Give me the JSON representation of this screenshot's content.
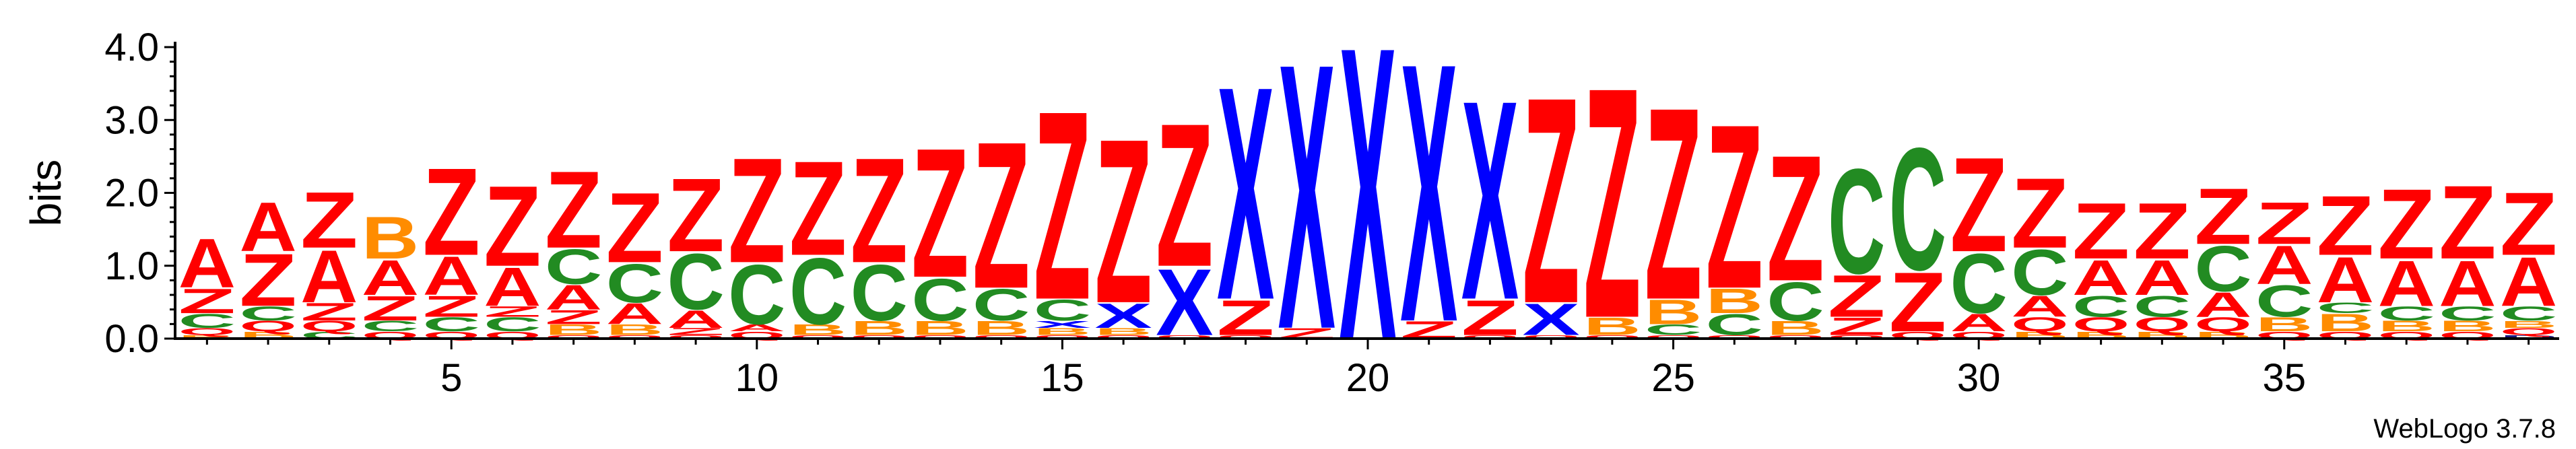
{
  "chart_data": {
    "type": "sequence-logo",
    "ylabel": "bits",
    "ylim": [
      0,
      4.0
    ],
    "yticks": [
      "0.0",
      "1.0",
      "2.0",
      "3.0",
      "4.0"
    ],
    "xlim": [
      1,
      39
    ],
    "xticks": [
      5,
      10,
      15,
      20,
      25,
      30,
      35
    ],
    "credit": "WebLogo 3.7.8",
    "colors": {
      "Z": "#ff0000",
      "A": "#ff0000",
      "Q": "#ff0000",
      "X": "#0000ff",
      "C": "#228b22",
      "B": "#ff8c00",
      "D": "#1a1a80"
    },
    "positions": [
      {
        "pos": 1,
        "stack": [
          [
            "B",
            0.05
          ],
          [
            "Q",
            0.1
          ],
          [
            "C",
            0.2
          ],
          [
            "Z",
            0.35
          ],
          [
            "A",
            0.7
          ]
        ]
      },
      {
        "pos": 2,
        "stack": [
          [
            "B",
            0.1
          ],
          [
            "Q",
            0.15
          ],
          [
            "C",
            0.2
          ],
          [
            "Z",
            0.75
          ],
          [
            "A",
            0.7
          ]
        ]
      },
      {
        "pos": 3,
        "stack": [
          [
            "C",
            0.1
          ],
          [
            "Q",
            0.15
          ],
          [
            "Z",
            0.25
          ],
          [
            "A",
            0.75
          ],
          [
            "Z",
            0.8
          ]
        ]
      },
      {
        "pos": 4,
        "stack": [
          [
            "Q",
            0.1
          ],
          [
            "C",
            0.15
          ],
          [
            "Z",
            0.35
          ],
          [
            "A",
            0.5
          ],
          [
            "B",
            0.6
          ]
        ]
      },
      {
        "pos": 5,
        "stack": [
          [
            "Q",
            0.1
          ],
          [
            "C",
            0.2
          ],
          [
            "Z",
            0.3
          ],
          [
            "A",
            0.55
          ],
          [
            "Z",
            1.25
          ]
        ]
      },
      {
        "pos": 6,
        "stack": [
          [
            "Q",
            0.1
          ],
          [
            "C",
            0.2
          ],
          [
            "Z",
            0.15
          ],
          [
            "A",
            0.55
          ],
          [
            "Z",
            1.15
          ]
        ]
      },
      {
        "pos": 7,
        "stack": [
          [
            "Q",
            0.05
          ],
          [
            "B",
            0.15
          ],
          [
            "Z",
            0.2
          ],
          [
            "A",
            0.35
          ],
          [
            "C",
            0.5
          ],
          [
            "Z",
            1.1
          ]
        ]
      },
      {
        "pos": 8,
        "stack": [
          [
            "Q",
            0.05
          ],
          [
            "B",
            0.15
          ],
          [
            "A",
            0.3
          ],
          [
            "C",
            0.55
          ],
          [
            "Z",
            1.0
          ]
        ]
      },
      {
        "pos": 9,
        "stack": [
          [
            "Q",
            0.05
          ],
          [
            "Z",
            0.1
          ],
          [
            "A",
            0.25
          ],
          [
            "C",
            0.8
          ],
          [
            "Z",
            1.05
          ]
        ]
      },
      {
        "pos": 10,
        "stack": [
          [
            "Q",
            0.1
          ],
          [
            "A",
            0.1
          ],
          [
            "C",
            0.85
          ],
          [
            "Z",
            1.5
          ]
        ]
      },
      {
        "pos": 11,
        "stack": [
          [
            "Q",
            0.05
          ],
          [
            "B",
            0.15
          ],
          [
            "C",
            0.95
          ],
          [
            "Z",
            1.35
          ]
        ]
      },
      {
        "pos": 12,
        "stack": [
          [
            "Q",
            0.05
          ],
          [
            "B",
            0.2
          ],
          [
            "C",
            0.8
          ],
          [
            "Z",
            1.5
          ]
        ]
      },
      {
        "pos": 13,
        "stack": [
          [
            "Q",
            0.05
          ],
          [
            "B",
            0.2
          ],
          [
            "C",
            0.6
          ],
          [
            "Z",
            1.85
          ]
        ]
      },
      {
        "pos": 14,
        "stack": [
          [
            "Q",
            0.05
          ],
          [
            "B",
            0.2
          ],
          [
            "C",
            0.45
          ],
          [
            "Z",
            2.1
          ]
        ]
      },
      {
        "pos": 15,
        "stack": [
          [
            "Q",
            0.05
          ],
          [
            "B",
            0.1
          ],
          [
            "X",
            0.1
          ],
          [
            "C",
            0.3
          ],
          [
            "Z",
            2.7
          ]
        ]
      },
      {
        "pos": 16,
        "stack": [
          [
            "Q",
            0.05
          ],
          [
            "B",
            0.1
          ],
          [
            "X",
            0.35
          ],
          [
            "Z",
            2.35
          ]
        ]
      },
      {
        "pos": 17,
        "stack": [
          [
            "Q",
            0.05
          ],
          [
            "X",
            0.95
          ],
          [
            "Z",
            2.05
          ]
        ]
      },
      {
        "pos": 18,
        "stack": [
          [
            "Q",
            0.05
          ],
          [
            "Z",
            0.5
          ],
          [
            "X",
            3.05
          ]
        ]
      },
      {
        "pos": 19,
        "stack": [
          [
            "Z",
            0.15
          ],
          [
            "X",
            3.8
          ]
        ]
      },
      {
        "pos": 20,
        "stack": [
          [
            "X",
            4.2
          ]
        ]
      },
      {
        "pos": 21,
        "stack": [
          [
            "Z",
            0.25
          ],
          [
            "X",
            3.7
          ]
        ]
      },
      {
        "pos": 22,
        "stack": [
          [
            "Q",
            0.05
          ],
          [
            "Z",
            0.5
          ],
          [
            "X",
            2.85
          ]
        ]
      },
      {
        "pos": 23,
        "stack": [
          [
            "Q",
            0.05
          ],
          [
            "X",
            0.45
          ],
          [
            "Z",
            2.95
          ]
        ]
      },
      {
        "pos": 24,
        "stack": [
          [
            "Q",
            0.05
          ],
          [
            "B",
            0.25
          ],
          [
            "Z",
            3.3
          ]
        ]
      },
      {
        "pos": 25,
        "stack": [
          [
            "Q",
            0.05
          ],
          [
            "C",
            0.15
          ],
          [
            "B",
            0.35
          ],
          [
            "Z",
            2.75
          ]
        ]
      },
      {
        "pos": 26,
        "stack": [
          [
            "Q",
            0.05
          ],
          [
            "C",
            0.3
          ],
          [
            "B",
            0.35
          ],
          [
            "Z",
            2.35
          ]
        ]
      },
      {
        "pos": 27,
        "stack": [
          [
            "Q",
            0.05
          ],
          [
            "B",
            0.2
          ],
          [
            "C",
            0.55
          ],
          [
            "Z",
            1.8
          ]
        ]
      },
      {
        "pos": 28,
        "stack": [
          [
            "Q",
            0.05
          ],
          [
            "Z",
            0.25
          ],
          [
            "Z",
            0.6
          ],
          [
            "C",
            1.5
          ]
        ]
      },
      {
        "pos": 29,
        "stack": [
          [
            "Q",
            0.1
          ],
          [
            "Z",
            0.85
          ],
          [
            "C",
            1.75
          ]
        ]
      },
      {
        "pos": 30,
        "stack": [
          [
            "Q",
            0.1
          ],
          [
            "A",
            0.25
          ],
          [
            "C",
            0.85
          ],
          [
            "Z",
            1.35
          ]
        ]
      },
      {
        "pos": 31,
        "stack": [
          [
            "B",
            0.1
          ],
          [
            "Q",
            0.2
          ],
          [
            "A",
            0.3
          ],
          [
            "C",
            0.65
          ],
          [
            "Z",
            1.0
          ]
        ]
      },
      {
        "pos": 32,
        "stack": [
          [
            "B",
            0.1
          ],
          [
            "Q",
            0.2
          ],
          [
            "C",
            0.3
          ],
          [
            "A",
            0.5
          ],
          [
            "Z",
            0.8
          ]
        ]
      },
      {
        "pos": 33,
        "stack": [
          [
            "B",
            0.1
          ],
          [
            "Q",
            0.2
          ],
          [
            "C",
            0.3
          ],
          [
            "A",
            0.5
          ],
          [
            "Z",
            0.8
          ]
        ]
      },
      {
        "pos": 34,
        "stack": [
          [
            "B",
            0.1
          ],
          [
            "Q",
            0.2
          ],
          [
            "A",
            0.35
          ],
          [
            "C",
            0.65
          ],
          [
            "Z",
            0.8
          ]
        ]
      },
      {
        "pos": 35,
        "stack": [
          [
            "Q",
            0.1
          ],
          [
            "B",
            0.2
          ],
          [
            "C",
            0.45
          ],
          [
            "A",
            0.55
          ],
          [
            "Z",
            0.6
          ]
        ]
      },
      {
        "pos": 36,
        "stack": [
          [
            "Q",
            0.1
          ],
          [
            "B",
            0.25
          ],
          [
            "C",
            0.15
          ],
          [
            "A",
            0.65
          ],
          [
            "Z",
            0.85
          ]
        ]
      },
      {
        "pos": 37,
        "stack": [
          [
            "Q",
            0.1
          ],
          [
            "B",
            0.15
          ],
          [
            "C",
            0.2
          ],
          [
            "A",
            0.65
          ],
          [
            "Z",
            1.0
          ]
        ]
      },
      {
        "pos": 38,
        "stack": [
          [
            "Q",
            0.1
          ],
          [
            "B",
            0.15
          ],
          [
            "C",
            0.2
          ],
          [
            "A",
            0.65
          ],
          [
            "Z",
            1.05
          ]
        ]
      },
      {
        "pos": 39,
        "stack": [
          [
            "D",
            0.05
          ],
          [
            "Q",
            0.1
          ],
          [
            "B",
            0.1
          ],
          [
            "C",
            0.2
          ],
          [
            "A",
            0.7
          ],
          [
            "Z",
            0.9
          ]
        ]
      }
    ]
  }
}
